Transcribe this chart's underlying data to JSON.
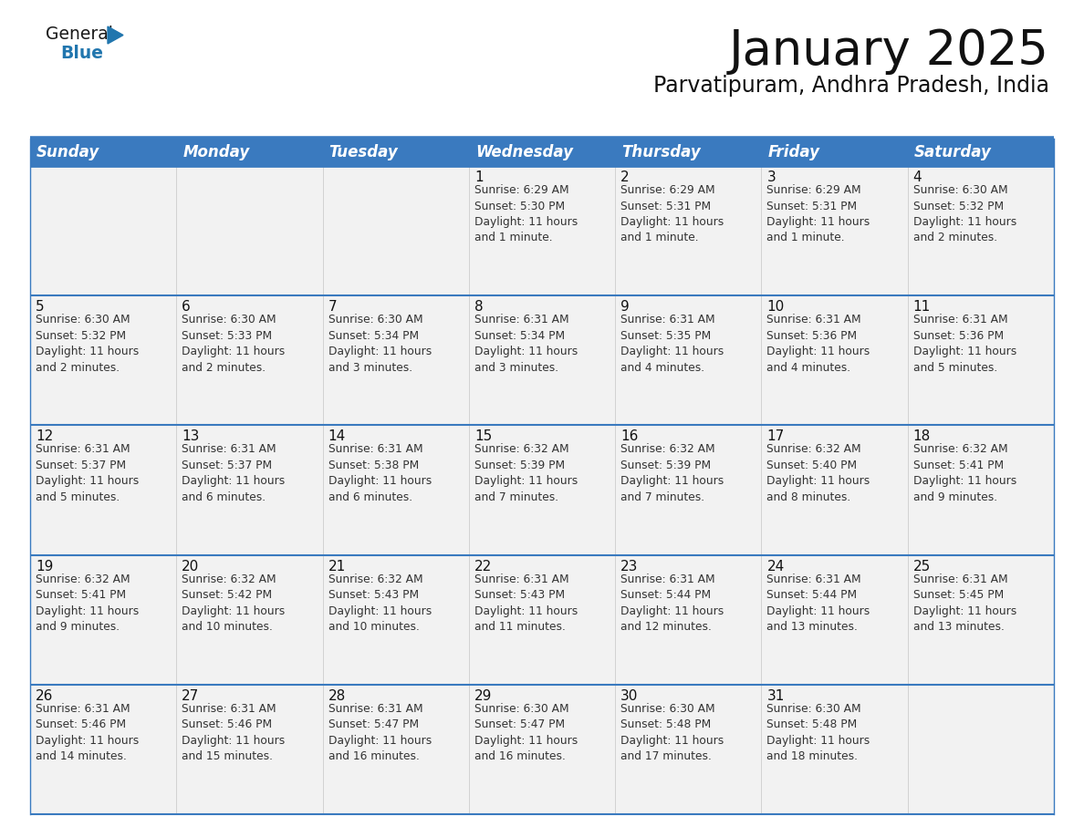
{
  "title": "January 2025",
  "subtitle": "Parvatipuram, Andhra Pradesh, India",
  "header_color": "#3a7abf",
  "header_text_color": "#ffffff",
  "background_color": "#ffffff",
  "cell_bg_color": "#f2f2f2",
  "border_color": "#3a7abf",
  "row_sep_color": "#3a7abf",
  "col_sep_color": "#cccccc",
  "days_of_week": [
    "Sunday",
    "Monday",
    "Tuesday",
    "Wednesday",
    "Thursday",
    "Friday",
    "Saturday"
  ],
  "weeks": [
    [
      {
        "day": "",
        "info": ""
      },
      {
        "day": "",
        "info": ""
      },
      {
        "day": "",
        "info": ""
      },
      {
        "day": "1",
        "info": "Sunrise: 6:29 AM\nSunset: 5:30 PM\nDaylight: 11 hours\nand 1 minute."
      },
      {
        "day": "2",
        "info": "Sunrise: 6:29 AM\nSunset: 5:31 PM\nDaylight: 11 hours\nand 1 minute."
      },
      {
        "day": "3",
        "info": "Sunrise: 6:29 AM\nSunset: 5:31 PM\nDaylight: 11 hours\nand 1 minute."
      },
      {
        "day": "4",
        "info": "Sunrise: 6:30 AM\nSunset: 5:32 PM\nDaylight: 11 hours\nand 2 minutes."
      }
    ],
    [
      {
        "day": "5",
        "info": "Sunrise: 6:30 AM\nSunset: 5:32 PM\nDaylight: 11 hours\nand 2 minutes."
      },
      {
        "day": "6",
        "info": "Sunrise: 6:30 AM\nSunset: 5:33 PM\nDaylight: 11 hours\nand 2 minutes."
      },
      {
        "day": "7",
        "info": "Sunrise: 6:30 AM\nSunset: 5:34 PM\nDaylight: 11 hours\nand 3 minutes."
      },
      {
        "day": "8",
        "info": "Sunrise: 6:31 AM\nSunset: 5:34 PM\nDaylight: 11 hours\nand 3 minutes."
      },
      {
        "day": "9",
        "info": "Sunrise: 6:31 AM\nSunset: 5:35 PM\nDaylight: 11 hours\nand 4 minutes."
      },
      {
        "day": "10",
        "info": "Sunrise: 6:31 AM\nSunset: 5:36 PM\nDaylight: 11 hours\nand 4 minutes."
      },
      {
        "day": "11",
        "info": "Sunrise: 6:31 AM\nSunset: 5:36 PM\nDaylight: 11 hours\nand 5 minutes."
      }
    ],
    [
      {
        "day": "12",
        "info": "Sunrise: 6:31 AM\nSunset: 5:37 PM\nDaylight: 11 hours\nand 5 minutes."
      },
      {
        "day": "13",
        "info": "Sunrise: 6:31 AM\nSunset: 5:37 PM\nDaylight: 11 hours\nand 6 minutes."
      },
      {
        "day": "14",
        "info": "Sunrise: 6:31 AM\nSunset: 5:38 PM\nDaylight: 11 hours\nand 6 minutes."
      },
      {
        "day": "15",
        "info": "Sunrise: 6:32 AM\nSunset: 5:39 PM\nDaylight: 11 hours\nand 7 minutes."
      },
      {
        "day": "16",
        "info": "Sunrise: 6:32 AM\nSunset: 5:39 PM\nDaylight: 11 hours\nand 7 minutes."
      },
      {
        "day": "17",
        "info": "Sunrise: 6:32 AM\nSunset: 5:40 PM\nDaylight: 11 hours\nand 8 minutes."
      },
      {
        "day": "18",
        "info": "Sunrise: 6:32 AM\nSunset: 5:41 PM\nDaylight: 11 hours\nand 9 minutes."
      }
    ],
    [
      {
        "day": "19",
        "info": "Sunrise: 6:32 AM\nSunset: 5:41 PM\nDaylight: 11 hours\nand 9 minutes."
      },
      {
        "day": "20",
        "info": "Sunrise: 6:32 AM\nSunset: 5:42 PM\nDaylight: 11 hours\nand 10 minutes."
      },
      {
        "day": "21",
        "info": "Sunrise: 6:32 AM\nSunset: 5:43 PM\nDaylight: 11 hours\nand 10 minutes."
      },
      {
        "day": "22",
        "info": "Sunrise: 6:31 AM\nSunset: 5:43 PM\nDaylight: 11 hours\nand 11 minutes."
      },
      {
        "day": "23",
        "info": "Sunrise: 6:31 AM\nSunset: 5:44 PM\nDaylight: 11 hours\nand 12 minutes."
      },
      {
        "day": "24",
        "info": "Sunrise: 6:31 AM\nSunset: 5:44 PM\nDaylight: 11 hours\nand 13 minutes."
      },
      {
        "day": "25",
        "info": "Sunrise: 6:31 AM\nSunset: 5:45 PM\nDaylight: 11 hours\nand 13 minutes."
      }
    ],
    [
      {
        "day": "26",
        "info": "Sunrise: 6:31 AM\nSunset: 5:46 PM\nDaylight: 11 hours\nand 14 minutes."
      },
      {
        "day": "27",
        "info": "Sunrise: 6:31 AM\nSunset: 5:46 PM\nDaylight: 11 hours\nand 15 minutes."
      },
      {
        "day": "28",
        "info": "Sunrise: 6:31 AM\nSunset: 5:47 PM\nDaylight: 11 hours\nand 16 minutes."
      },
      {
        "day": "29",
        "info": "Sunrise: 6:30 AM\nSunset: 5:47 PM\nDaylight: 11 hours\nand 16 minutes."
      },
      {
        "day": "30",
        "info": "Sunrise: 6:30 AM\nSunset: 5:48 PM\nDaylight: 11 hours\nand 17 minutes."
      },
      {
        "day": "31",
        "info": "Sunrise: 6:30 AM\nSunset: 5:48 PM\nDaylight: 11 hours\nand 18 minutes."
      },
      {
        "day": "",
        "info": ""
      }
    ]
  ],
  "logo_general_color": "#1a1a1a",
  "logo_blue_color": "#2176ae",
  "logo_triangle_color": "#2176ae",
  "title_fontsize": 38,
  "subtitle_fontsize": 17,
  "header_fontsize": 12,
  "day_num_fontsize": 11,
  "info_fontsize": 8.8
}
